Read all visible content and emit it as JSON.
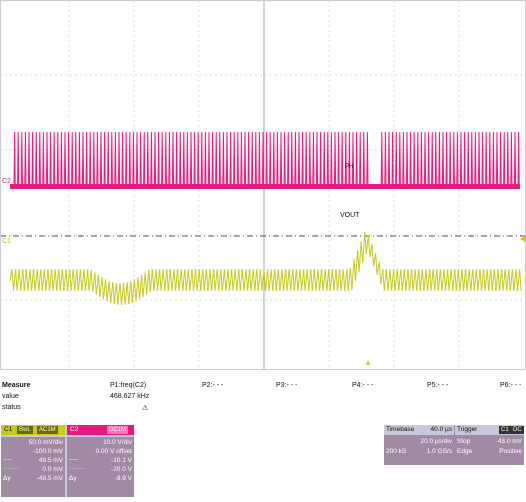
{
  "scope": {
    "ch2_label": "C2",
    "ch1_label": "C1",
    "cursor_label_1": "PH",
    "cursor_label_2": "VOUT"
  },
  "measure": {
    "title": "Measure",
    "value_label": "value",
    "status_label": "status",
    "p1_name": "P1:freq(C2)",
    "p1_value": "468.627 kHz",
    "p1_status": "⚠",
    "p2": "P2:- - -",
    "p3": "P3:- - -",
    "p4": "P4:- - -",
    "p5": "P5:- - -",
    "p6": "P6:- - -"
  },
  "c1": {
    "name": "C1",
    "tags": [
      "BwL",
      "AC1M"
    ],
    "vdiv": "50.0 mV/div",
    "offset": "-100.0 mV",
    "cur1": "49.5 mV",
    "cur2": "0.0 mV",
    "dy_label": "Δy",
    "dy": "-49.5 mV",
    "color": "#c8c81e"
  },
  "c2": {
    "name": "C2",
    "tag": "DC1M",
    "vdiv": "10.0 V/div",
    "offset": "0.00 V offset",
    "cur1": "-10.1 V",
    "cur2": "-20.0 V",
    "dy_label": "Δy",
    "dy": "-9.9 V",
    "color": "#e8197d"
  },
  "timebase": {
    "title": "Timebase",
    "delay": "40.0 µs",
    "tdiv": "20.0 µs/div",
    "samples": "200 kS",
    "rate": "1.0 GS/s"
  },
  "trigger": {
    "title": "Trigger",
    "tags": [
      "C1",
      "DC"
    ],
    "mode": "Stop",
    "level": "43.0 mV",
    "type": "Edge",
    "slope": "Positive"
  }
}
